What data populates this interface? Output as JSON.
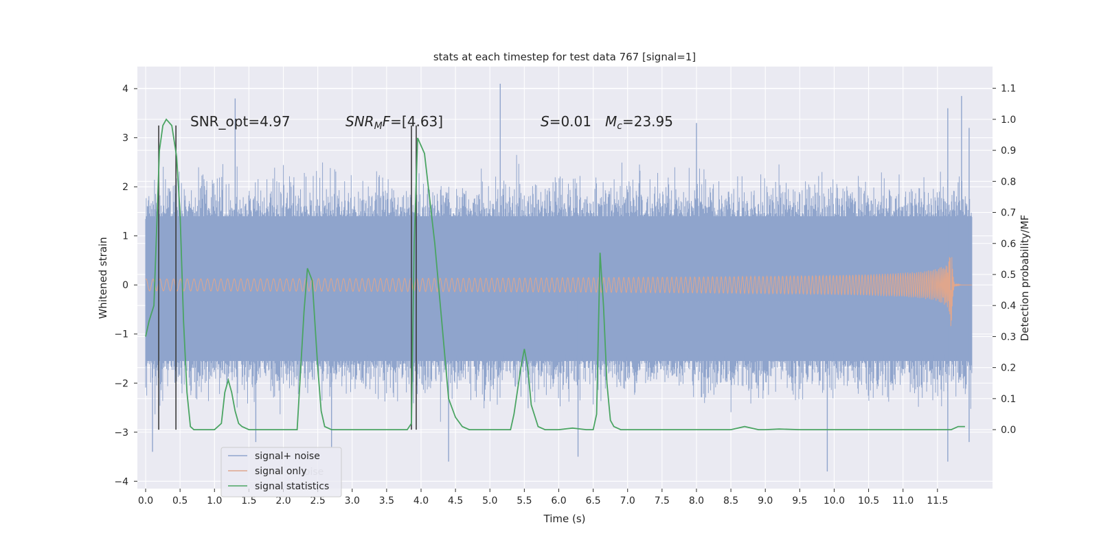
{
  "chart_data": {
    "type": "line",
    "title": "stats at each timestep for test data 767 [signal=1]",
    "xlabel": "Time (s)",
    "ylabel": "Whitened strain",
    "ylabel_right": "Detection probability/MF",
    "xlim": [
      -0.12,
      12.3
    ],
    "ylim": [
      -4.15,
      4.45
    ],
    "ylim_right": [
      -0.19,
      1.17
    ],
    "x_ticks": [
      0.0,
      0.5,
      1.0,
      1.5,
      2.0,
      2.5,
      3.0,
      3.5,
      4.0,
      4.5,
      5.0,
      5.5,
      6.0,
      6.5,
      7.0,
      7.5,
      8.0,
      8.5,
      9.0,
      9.5,
      10.0,
      10.5,
      11.0,
      11.5
    ],
    "x_tick_labels": [
      "0.0",
      "0.5",
      "1.0",
      "1.5",
      "2.0",
      "2.5",
      "3.0",
      "3.5",
      "4.0",
      "4.5",
      "5.0",
      "5.5",
      "6.0",
      "6.5",
      "7.0",
      "7.5",
      "8.0",
      "8.5",
      "9.0",
      "9.5",
      "10.0",
      "10.5",
      "11.0",
      "11.5"
    ],
    "y_ticks": [
      4,
      3,
      2,
      1,
      0,
      -1,
      -2,
      -3,
      -4
    ],
    "y_tick_labels": [
      "4",
      "3",
      "2",
      "1",
      "0",
      "−1",
      "−2",
      "−3",
      "−4"
    ],
    "y_right_ticks": [
      1.1,
      1.0,
      0.9,
      0.8,
      0.7,
      0.6,
      0.5,
      0.4,
      0.3,
      0.2,
      0.1,
      0.0
    ],
    "y_right_tick_labels": [
      "1.1",
      "1.0",
      "0.9",
      "0.8",
      "0.7",
      "0.6",
      "0.5",
      "0.4",
      "0.3",
      "0.2",
      "0.1",
      "0.0"
    ],
    "grid": true,
    "legend_position": "lower-left",
    "series": [
      {
        "name": "signal+ noise",
        "color": "#8fa4cc",
        "axis": "left",
        "x_range": [
          0.0,
          12.0
        ],
        "typical_range": [
          -1.7,
          1.85
        ],
        "peak_spikes": [
          {
            "x": 0.1,
            "y": -3.4
          },
          {
            "x": 1.3,
            "y": 3.8
          },
          {
            "x": 1.6,
            "y": -3.2
          },
          {
            "x": 2.7,
            "y": -3.3
          },
          {
            "x": 4.4,
            "y": -3.6
          },
          {
            "x": 5.15,
            "y": 4.1
          },
          {
            "x": 6.28,
            "y": -3.5
          },
          {
            "x": 8.0,
            "y": 3.3
          },
          {
            "x": 9.9,
            "y": -3.8
          },
          {
            "x": 11.65,
            "y": 3.6
          },
          {
            "x": 11.65,
            "y": -3.6
          },
          {
            "x": 11.85,
            "y": 3.85
          },
          {
            "x": 11.96,
            "y": 3.2
          },
          {
            "x": 11.96,
            "y": -3.2
          }
        ]
      },
      {
        "name": "signal only",
        "color": "#e0a68c",
        "axis": "left",
        "x_range": [
          0.0,
          12.0
        ],
        "merger_time": 11.7,
        "peak_amplitude": 1.0
      },
      {
        "name": "signal statistics",
        "color": "#4aa462",
        "axis": "right",
        "x": [
          0.0,
          0.05,
          0.12,
          0.2,
          0.25,
          0.3,
          0.38,
          0.45,
          0.5,
          0.55,
          0.6,
          0.65,
          0.7,
          0.8,
          0.9,
          1.0,
          1.1,
          1.15,
          1.2,
          1.25,
          1.3,
          1.35,
          1.4,
          1.5,
          1.6,
          1.7,
          1.8,
          1.9,
          2.0,
          2.1,
          2.2,
          2.3,
          2.35,
          2.42,
          2.5,
          2.55,
          2.6,
          2.7,
          2.8,
          3.0,
          3.5,
          3.8,
          3.86,
          3.9,
          3.95,
          4.05,
          4.2,
          4.3,
          4.4,
          4.5,
          4.6,
          4.7,
          4.8,
          5.0,
          5.2,
          5.3,
          5.35,
          5.45,
          5.5,
          5.55,
          5.6,
          5.7,
          5.8,
          6.0,
          6.2,
          6.4,
          6.5,
          6.55,
          6.6,
          6.65,
          6.7,
          6.75,
          6.8,
          6.9,
          7.0,
          7.5,
          8.0,
          8.5,
          8.7,
          8.9,
          9.0,
          9.2,
          9.5,
          10.0,
          11.0,
          11.5,
          11.7,
          11.8,
          11.9
        ],
        "y": [
          0.3,
          0.35,
          0.4,
          0.9,
          0.98,
          1.0,
          0.98,
          0.88,
          0.7,
          0.35,
          0.12,
          0.01,
          0.0,
          0.0,
          0.0,
          0.0,
          0.02,
          0.12,
          0.16,
          0.12,
          0.06,
          0.02,
          0.01,
          0.0,
          0.0,
          0.0,
          0.0,
          0.0,
          0.0,
          0.0,
          0.0,
          0.38,
          0.52,
          0.48,
          0.2,
          0.06,
          0.01,
          0.0,
          0.0,
          0.0,
          0.0,
          0.0,
          0.02,
          0.6,
          0.94,
          0.89,
          0.6,
          0.35,
          0.1,
          0.04,
          0.01,
          0.0,
          0.0,
          0.0,
          0.0,
          0.0,
          0.05,
          0.2,
          0.26,
          0.2,
          0.08,
          0.01,
          0.0,
          0.0,
          0.005,
          0.0,
          0.0,
          0.05,
          0.57,
          0.4,
          0.15,
          0.03,
          0.01,
          0.0,
          0.0,
          0.0,
          0.0,
          0.0,
          0.01,
          0.0,
          0.0,
          0.002,
          0.0,
          0.0,
          0.0,
          0.0,
          0.0,
          0.01,
          0.01
        ]
      }
    ],
    "vertical_lines": [
      {
        "x": 0.19,
        "y_top": 3.25,
        "y_bottom": -2.95
      },
      {
        "x": 0.44,
        "y_top": 3.25,
        "y_bottom": -2.95
      },
      {
        "x": 3.86,
        "y_top": 3.25,
        "y_bottom": -2.95
      },
      {
        "x": 3.93,
        "y_top": 3.25,
        "y_bottom": -2.95
      }
    ],
    "annotations": {
      "snr_opt": "SNR_opt=4.97",
      "snr_mf_symbol": "SNR",
      "snr_mf_sub": "M",
      "snr_mf_symbol2": "F",
      "snr_mf_value": "=[4.63]",
      "s_symbol": "S",
      "s_value": "=0.01",
      "mc_symbol": "M",
      "mc_sub": "c",
      "mc_value": "=23.95"
    }
  },
  "legend_overlap_text": "noise"
}
